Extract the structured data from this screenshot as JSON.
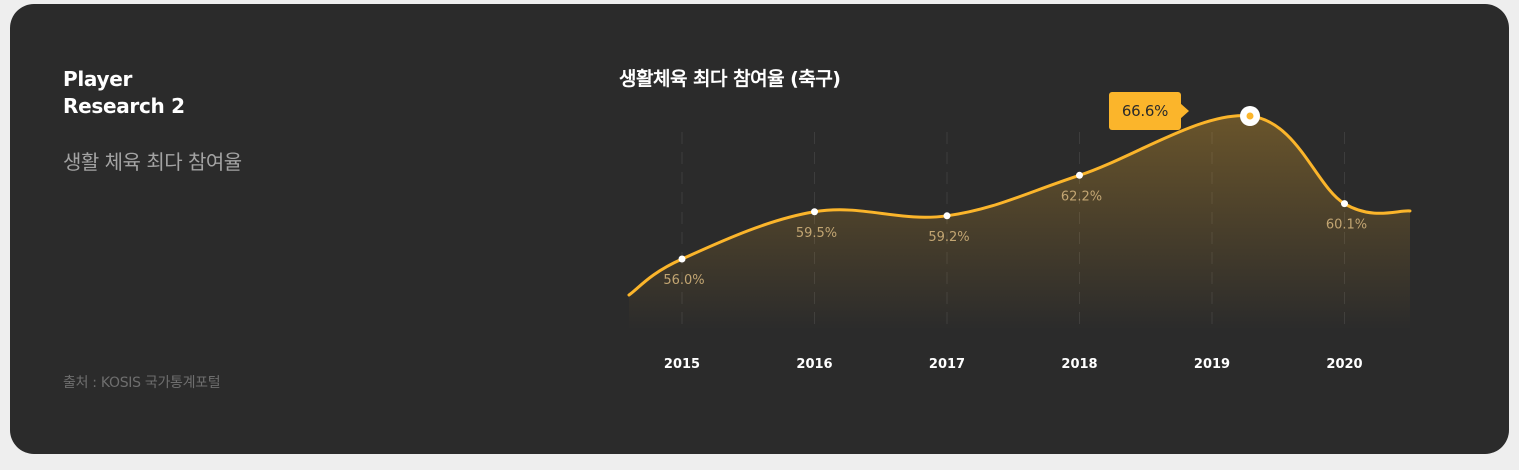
{
  "card": {
    "heading_line1": "Player",
    "heading_line2": "Research 2",
    "subtitle": "생활 체육 최다 참여율",
    "source": "출처 : KOSIS 국가통계포털"
  },
  "tooltip": {
    "value": "66.6%"
  },
  "colors": {
    "background": "#2b2b2b",
    "accent": "#fbb52b",
    "label_value": "#c2a572",
    "axis_label": "#ffffff"
  },
  "chart_data": {
    "type": "line",
    "title": "생활체육 최다 참여율 (축구)",
    "xlabel": "",
    "ylabel": "",
    "categories": [
      "2015",
      "2016",
      "2017",
      "2018",
      "2019",
      "2020"
    ],
    "series": [
      {
        "values": [
          56.0,
          59.5,
          59.2,
          62.2,
          66.6,
          60.1
        ],
        "labels": [
          "56.0%",
          "59.5%",
          "59.2%",
          "62.2%",
          "",
          "60.1%"
        ]
      }
    ],
    "highlight": {
      "value": 66.6,
      "label": "66.6%",
      "marker": "circle"
    },
    "smooth": true,
    "area_fill": true,
    "grid": "vertical-dashed"
  }
}
